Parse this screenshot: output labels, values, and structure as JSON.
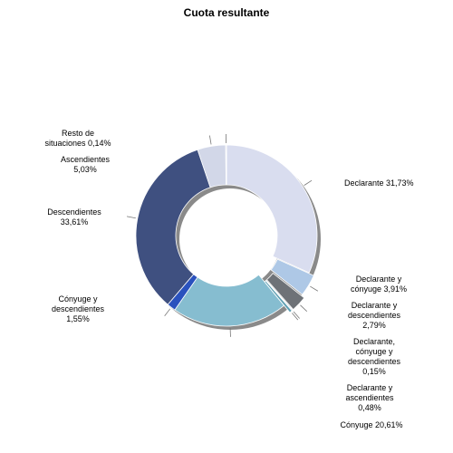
{
  "chart_data": {
    "type": "donut",
    "title": "Cuota resultante",
    "legend": "none",
    "slices": [
      {
        "label": [
          "Declarante 31,73%"
        ],
        "value": 31.73,
        "color": "#d9ddef"
      },
      {
        "label": [
          "Declarante y",
          "cónyuge 3,91%"
        ],
        "value": 3.91,
        "color": "#aec8e6"
      },
      {
        "label": [
          "Declarante y",
          "descendientes",
          "2,79%"
        ],
        "value": 2.79,
        "color": "#6e7277"
      },
      {
        "label": [
          "Declarante,",
          "cónyuge y",
          "descendientes",
          "0,15%"
        ],
        "value": 0.15,
        "color": "#4a6fa5"
      },
      {
        "label": [
          "Declarante y",
          "ascendientes",
          "0,48%"
        ],
        "value": 0.48,
        "color": "#5b9db1"
      },
      {
        "label": [
          "Cónyuge 20,61%"
        ],
        "value": 20.61,
        "color": "#86bdd0"
      },
      {
        "label": [
          "Cónyuge y",
          "descendientes",
          "1,55%"
        ],
        "value": 1.55,
        "color": "#2a52be"
      },
      {
        "label": [
          "Descendientes",
          "33,61%"
        ],
        "value": 33.61,
        "color": "#3f5080"
      },
      {
        "label": [
          "Ascendientes",
          "5,03%"
        ],
        "value": 5.03,
        "color": "#d2d7e8"
      },
      {
        "label": [
          "Resto de",
          "situaciones 0,14%"
        ],
        "value": 0.14,
        "color": "#9aa0b5"
      }
    ]
  }
}
